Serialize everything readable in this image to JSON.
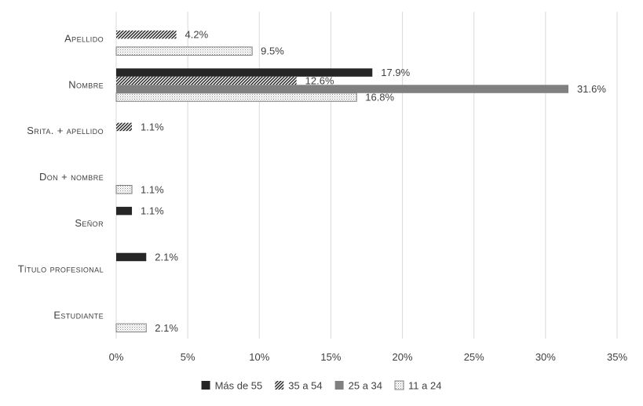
{
  "chart_data": {
    "type": "bar",
    "orientation": "horizontal",
    "categories": [
      "Apellido",
      "Nombre",
      "Srita. + apellido",
      "Don + nombre",
      "Señor",
      "Título profesional",
      "Estudiante"
    ],
    "series": [
      {
        "name": "Más de 55",
        "pattern": "solid-dark",
        "color": "#262626",
        "values": [
          0,
          17.9,
          0,
          0,
          1.1,
          2.1,
          0
        ],
        "labels": [
          "",
          "17.9%",
          "",
          "",
          "1.1%",
          "2.1%",
          ""
        ]
      },
      {
        "name": "35 a 54",
        "pattern": "diagonal-hatch",
        "color": "#262626",
        "values": [
          4.2,
          12.6,
          1.1,
          0,
          0,
          0,
          0
        ],
        "labels": [
          "4.2%",
          "12.6%",
          "1.1%",
          "",
          "",
          "",
          ""
        ]
      },
      {
        "name": "25 a 34",
        "pattern": "solid-gray",
        "color": "#808080",
        "values": [
          0,
          31.6,
          0,
          0,
          0,
          0,
          0
        ],
        "labels": [
          "",
          "31.6%",
          "",
          "",
          "",
          "",
          ""
        ]
      },
      {
        "name": "11 a 24",
        "pattern": "dotted",
        "color": "#bfbfbf",
        "values": [
          9.5,
          16.8,
          0,
          1.1,
          0,
          0,
          2.1
        ],
        "labels": [
          "9.5%",
          "16.8%",
          "",
          "1.1%",
          "",
          "",
          "2.1%"
        ]
      }
    ],
    "x_ticks": [
      "0%",
      "5%",
      "10%",
      "15%",
      "20%",
      "25%",
      "30%",
      "35%"
    ],
    "xlim": [
      0,
      35
    ],
    "grid": "vertical",
    "legend_position": "bottom",
    "title": "",
    "xlabel": "",
    "ylabel": ""
  }
}
